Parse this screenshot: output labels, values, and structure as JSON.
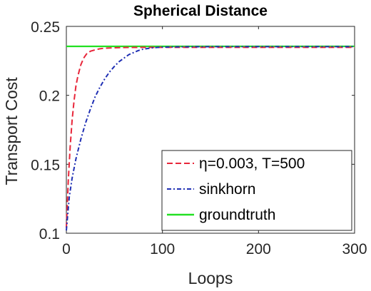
{
  "chart_data": {
    "type": "line",
    "title": "Spherical Distance",
    "xlabel": "Loops",
    "ylabel": "Transport Cost",
    "xlim": [
      0,
      300
    ],
    "ylim": [
      0.1,
      0.25
    ],
    "xticks": [
      0,
      100,
      200,
      300
    ],
    "xtick_labels": [
      "0",
      "100",
      "200",
      "300"
    ],
    "yticks": [
      0.1,
      0.15,
      0.2,
      0.25
    ],
    "ytick_labels": [
      "0.1",
      "0.15",
      "0.2",
      "0.25"
    ],
    "grid": false,
    "legend_position": "bottom-right",
    "series": [
      {
        "name": "η=0.003, T=500",
        "color": "#e8263a",
        "style": "dashed",
        "x": [
          0,
          2,
          4,
          6,
          8,
          10,
          12,
          15,
          18,
          21,
          25,
          30,
          35,
          40,
          50,
          60,
          80,
          100,
          150,
          200,
          250,
          300
        ],
        "y": [
          0.104,
          0.138,
          0.163,
          0.182,
          0.196,
          0.207,
          0.214,
          0.222,
          0.227,
          0.23,
          0.232,
          0.233,
          0.2338,
          0.2342,
          0.2345,
          0.2347,
          0.2348,
          0.2348,
          0.2348,
          0.2348,
          0.2348,
          0.2348
        ]
      },
      {
        "name": "sinkhorn",
        "color": "#1f2fb4",
        "style": "dashdot",
        "x": [
          0,
          3,
          6,
          10,
          15,
          20,
          25,
          30,
          35,
          40,
          45,
          50,
          55,
          60,
          65,
          70,
          75,
          80,
          90,
          100,
          120,
          150,
          200,
          250,
          300
        ],
        "y": [
          0.102,
          0.126,
          0.14,
          0.154,
          0.168,
          0.18,
          0.19,
          0.199,
          0.206,
          0.212,
          0.217,
          0.221,
          0.2245,
          0.227,
          0.2295,
          0.231,
          0.2325,
          0.2335,
          0.2345,
          0.235,
          0.2352,
          0.2353,
          0.2353,
          0.2353,
          0.2353
        ]
      },
      {
        "name": "groundtruth",
        "color": "#22e022",
        "style": "solid",
        "x": [
          0,
          300
        ],
        "y": [
          0.2355,
          0.2355
        ]
      }
    ]
  }
}
